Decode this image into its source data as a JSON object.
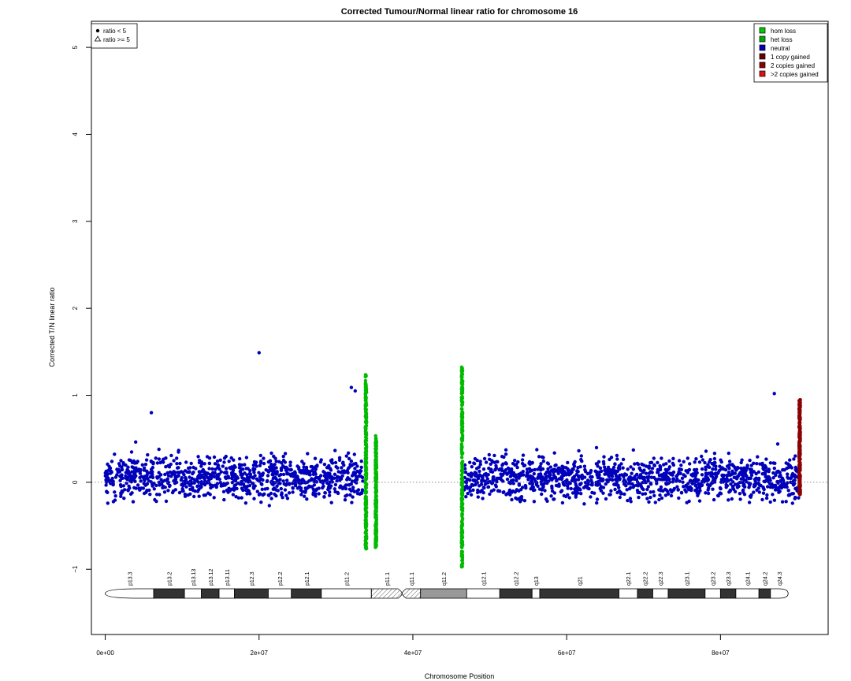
{
  "chart_data": {
    "type": "scatter",
    "title": "Corrected Tumour/Normal linear ratio for chromosome  16",
    "xlabel": "Chromosome Position",
    "ylabel": "Corrected T/N linear ratio",
    "xlim": [
      -1800000,
      94000000
    ],
    "ylim": [
      -1.75,
      5.3
    ],
    "x_ticks": [
      0,
      20000000,
      40000000,
      60000000,
      80000000
    ],
    "x_tick_labels": [
      "0e+00",
      "2e+07",
      "4e+07",
      "6e+07",
      "8e+07"
    ],
    "y_ticks": [
      -1,
      0,
      1,
      2,
      3,
      4,
      5
    ],
    "y_tick_labels": [
      "−1",
      "0",
      "1",
      "2",
      "3",
      "4",
      "5"
    ],
    "reference_line_y": 0,
    "shape_legend": {
      "position": "top-left",
      "entries": [
        {
          "label": "ratio < 5",
          "symbol": "filled-circle"
        },
        {
          "label": "ratio >= 5",
          "symbol": "open-triangle"
        }
      ]
    },
    "color_legend": {
      "position": "top-right",
      "entries": [
        {
          "label": "hom loss",
          "color": "#00cc00"
        },
        {
          "label": "het loss",
          "color": "#00aa00"
        },
        {
          "label": "neutral",
          "color": "#0000bb"
        },
        {
          "label": "1 copy gained",
          "color": "#660000"
        },
        {
          "label": "2 copies gained",
          "color": "#8b0000"
        },
        {
          "label": ">2 copies gained",
          "color": "#dd1111"
        }
      ]
    },
    "series": [
      {
        "name": "neutral",
        "color": "#0000bb",
        "segments": [
          [
            0,
            33700000
          ],
          [
            46600000,
            90200000
          ]
        ],
        "typical_range": [
          -0.35,
          0.45
        ],
        "outliers": [
          [
            20000000,
            1.49
          ],
          [
            32000000,
            1.09
          ],
          [
            32500000,
            1.05
          ],
          [
            87000000,
            1.02
          ],
          [
            6000000,
            0.8
          ]
        ]
      },
      {
        "name": "het loss",
        "color": "#00bb00",
        "clusters": [
          {
            "x": 33900000,
            "range": [
              -0.78,
              1.25
            ]
          },
          {
            "x": 35200000,
            "range": [
              -0.75,
              0.55
            ]
          },
          {
            "x": 46400000,
            "range": [
              -0.98,
              1.34
            ]
          }
        ]
      },
      {
        "name": "2 copies gained",
        "color": "#8b0000",
        "clusters": [
          {
            "x": 90300000,
            "range": [
              -0.15,
              0.95
            ]
          }
        ]
      }
    ],
    "ideogram": {
      "chromosome": "16",
      "bands": [
        {
          "name": "p13.3",
          "start": 0,
          "end": 6300000,
          "stain": "gneg"
        },
        {
          "name": "p13.2",
          "start": 6300000,
          "end": 10300000,
          "stain": "gpos50"
        },
        {
          "name": "p13.13",
          "start": 10300000,
          "end": 12500000,
          "stain": "gneg"
        },
        {
          "name": "p13.12",
          "start": 12500000,
          "end": 14800000,
          "stain": "gpos50"
        },
        {
          "name": "p13.11",
          "start": 14800000,
          "end": 16800000,
          "stain": "gneg"
        },
        {
          "name": "p12.3",
          "start": 16800000,
          "end": 21200000,
          "stain": "gpos50"
        },
        {
          "name": "p12.2",
          "start": 21200000,
          "end": 24200000,
          "stain": "gneg"
        },
        {
          "name": "p12.1",
          "start": 24200000,
          "end": 28100000,
          "stain": "gpos50"
        },
        {
          "name": "p11.2",
          "start": 28100000,
          "end": 34600000,
          "stain": "gneg"
        },
        {
          "name": "p11.1",
          "start": 34600000,
          "end": 38600000,
          "stain": "stalk"
        },
        {
          "name": "q11.1",
          "start": 38600000,
          "end": 41000000,
          "stain": "stalk"
        },
        {
          "name": "q11.2",
          "start": 41000000,
          "end": 47000000,
          "stain": "gvar"
        },
        {
          "name": "q12.1",
          "start": 47000000,
          "end": 51300000,
          "stain": "gneg"
        },
        {
          "name": "q12.2",
          "start": 51300000,
          "end": 55500000,
          "stain": "gpos50"
        },
        {
          "name": "q13",
          "start": 55500000,
          "end": 56500000,
          "stain": "gneg"
        },
        {
          "name": "q21",
          "start": 56500000,
          "end": 66800000,
          "stain": "gpos50"
        },
        {
          "name": "q22.1",
          "start": 66800000,
          "end": 69200000,
          "stain": "gneg"
        },
        {
          "name": "q22.2",
          "start": 69200000,
          "end": 71200000,
          "stain": "gpos50"
        },
        {
          "name": "q22.3",
          "start": 71200000,
          "end": 73200000,
          "stain": "gneg"
        },
        {
          "name": "q23.1",
          "start": 73200000,
          "end": 78000000,
          "stain": "gpos50"
        },
        {
          "name": "q23.2",
          "start": 78000000,
          "end": 80000000,
          "stain": "gneg"
        },
        {
          "name": "q23.3",
          "start": 80000000,
          "end": 82000000,
          "stain": "gpos50"
        },
        {
          "name": "q24.1",
          "start": 82000000,
          "end": 85000000,
          "stain": "gneg"
        },
        {
          "name": "q24.2",
          "start": 85000000,
          "end": 86500000,
          "stain": "gpos50"
        },
        {
          "name": "q24.3",
          "start": 86500000,
          "end": 88800000,
          "stain": "gneg"
        }
      ]
    }
  }
}
